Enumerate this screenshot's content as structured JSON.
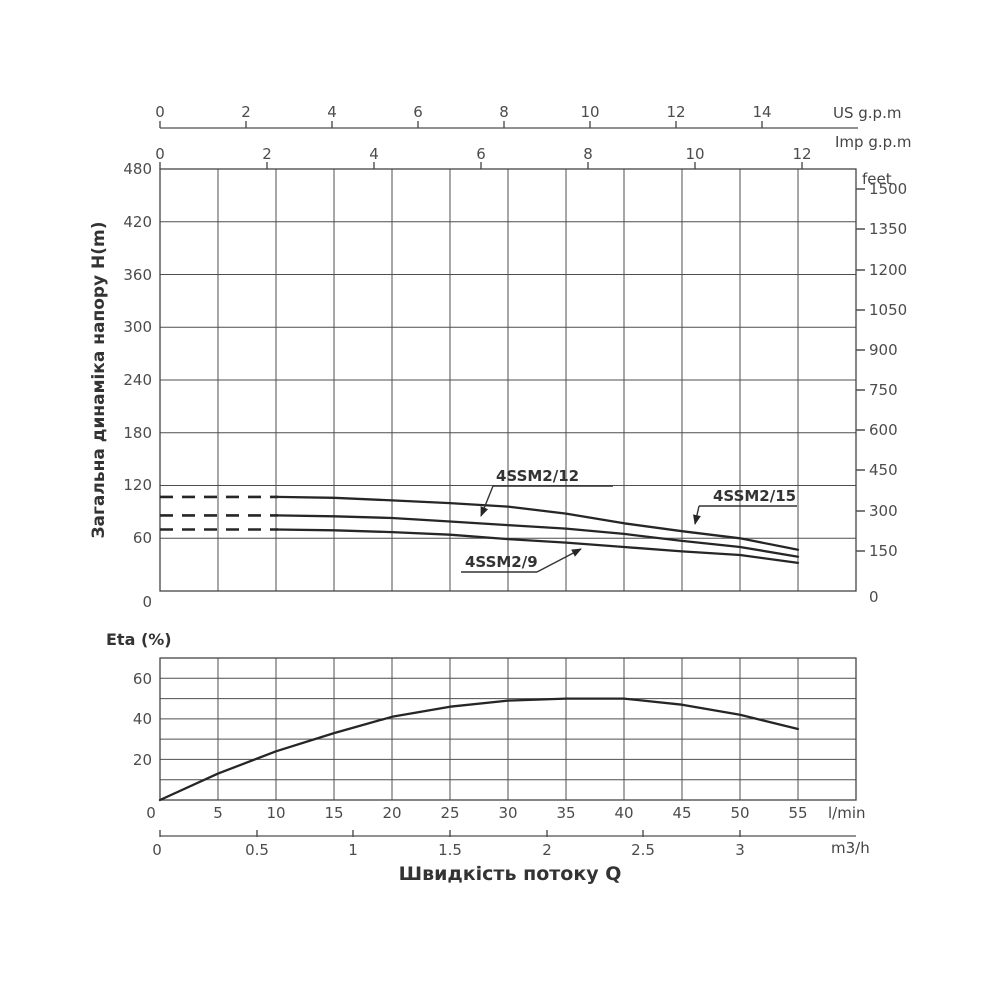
{
  "head_chart": {
    "ylabel": "Загальна динаміка напору H(m)",
    "y_ticks": [
      "480",
      "420",
      "360",
      "300",
      "240",
      "180",
      "120",
      "60"
    ],
    "y_zero": "0",
    "us_axis": {
      "label": "US g.p.m",
      "ticks": [
        "0",
        "2",
        "4",
        "6",
        "8",
        "10",
        "12",
        "14"
      ]
    },
    "imp_axis": {
      "label": "Imp g.p.m",
      "ticks": [
        "0",
        "2",
        "4",
        "6",
        "8",
        "10",
        "12"
      ]
    },
    "feet_axis": {
      "label": "feet",
      "ticks": [
        "1500",
        "1350",
        "1200",
        "1050",
        "900",
        "750",
        "600",
        "450",
        "300",
        "150"
      ],
      "zero": "0"
    }
  },
  "eta_chart": {
    "ylabel": "Eta (%)",
    "y_ticks": [
      "60",
      "40",
      "20"
    ],
    "lmin_axis": {
      "label": "l/min",
      "ticks": [
        "0",
        "5",
        "10",
        "15",
        "20",
        "25",
        "30",
        "35",
        "40",
        "45",
        "50",
        "55"
      ]
    },
    "m3h_axis": {
      "label": "m3/h",
      "ticks": [
        "0",
        "0.5",
        "1",
        "1.5",
        "2",
        "2.5",
        "3"
      ]
    },
    "x_title": "Швидкість потоку Q"
  },
  "chart_data": [
    {
      "type": "line",
      "title": "Total dynamic head H vs flow Q",
      "ylabel": "Загальна динаміка напору H(m)",
      "ylim_m": [
        0,
        480
      ],
      "y_gridstep_m": 60,
      "right_axis_feet": {
        "min": 0,
        "max": 1500,
        "step": 150
      },
      "x_axes": {
        "us_gpm_ticks": [
          0,
          2,
          4,
          6,
          8,
          10,
          12,
          14
        ],
        "imp_gpm_ticks": [
          0,
          2,
          4,
          6,
          8,
          10,
          12
        ],
        "x_fullscale_lmin": 60
      },
      "x_lmin": [
        10,
        15,
        20,
        25,
        30,
        35,
        40,
        45,
        50,
        55
      ],
      "series": [
        {
          "name": "4SSM2/15",
          "H_m": [
            107,
            106,
            103,
            100,
            96,
            88,
            77,
            68,
            60,
            47
          ]
        },
        {
          "name": "4SSM2/12",
          "H_m": [
            86,
            85,
            83,
            79,
            75,
            71,
            65,
            57,
            50,
            39
          ]
        },
        {
          "name": "4SSM2/9",
          "H_m": [
            70,
            69,
            67,
            64,
            59,
            55,
            50,
            45,
            41,
            32
          ]
        }
      ],
      "dashed_low_flow_lmin": [
        0,
        10
      ],
      "legend_position": "labels-with-arrows-on-curves",
      "grid": true
    },
    {
      "type": "line",
      "title": "Eta (%) vs flow Q",
      "ylabel": "Eta (%)",
      "ylim_pct": [
        0,
        70
      ],
      "y_gridstep_pct": 10,
      "xlabel": "Швидкість потоку Q",
      "x_lmin": [
        0,
        5,
        10,
        15,
        20,
        25,
        30,
        35,
        40,
        45,
        50,
        55
      ],
      "values_pct": [
        0,
        13,
        24,
        33,
        41,
        46,
        49,
        50,
        50,
        47,
        42,
        35
      ],
      "x_axis_m3h_ticks": [
        0,
        0.5,
        1,
        1.5,
        2,
        2.5,
        3
      ],
      "grid": true
    }
  ]
}
